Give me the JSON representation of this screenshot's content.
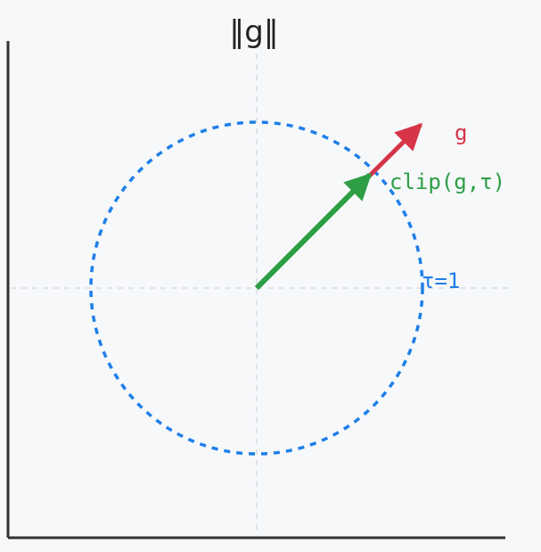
{
  "diagram": {
    "title": "‖g‖",
    "labels": {
      "gradient": "g",
      "clipped": "clip(g,τ)",
      "threshold": "τ=1"
    },
    "colors": {
      "background": "#f6f8fa",
      "axes": "#333333",
      "grid": "#d9dde2",
      "circle": "#1f7fe8",
      "gradient": "#d63447",
      "clipped": "#2e9e45",
      "title": "#222222"
    },
    "elements": [
      {
        "name": "clip-threshold-circle",
        "kind": "circle",
        "style": "dashed",
        "meaning": "norm ball of radius τ=1"
      },
      {
        "name": "gradient-vector-arrow",
        "kind": "arrow",
        "meaning": "original gradient g, extends beyond circle"
      },
      {
        "name": "clipped-vector-arrow",
        "kind": "arrow",
        "meaning": "clipped gradient, ends on circle"
      }
    ]
  }
}
